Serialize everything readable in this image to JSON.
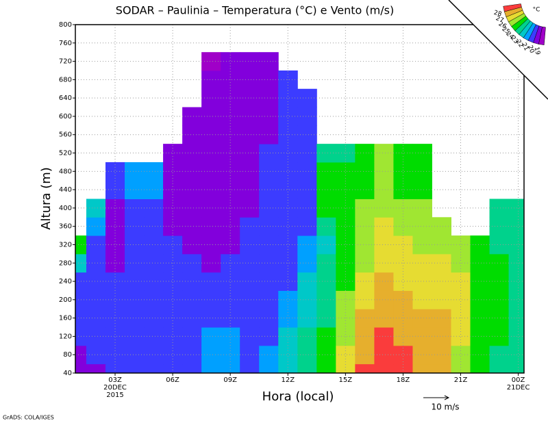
{
  "chart_data": {
    "type": "heatmap",
    "title": "SODAR – Paulinia – Temperatura (°C) e Vento (m/s)",
    "x_label": "Hora (local)",
    "y_label": "Altura (m)",
    "x": [
      1,
      2,
      3,
      4,
      5,
      6,
      7,
      8,
      9,
      10,
      11,
      12,
      13,
      14,
      15,
      16,
      17,
      18,
      19,
      20,
      21,
      22,
      23,
      24
    ],
    "y": [
      40,
      80,
      120,
      160,
      200,
      240,
      280,
      320,
      360,
      400,
      440,
      480,
      520,
      560,
      600,
      640,
      680,
      720,
      760,
      800
    ],
    "z": [
      [
        19.5,
        19.5,
        20.5,
        20.5,
        20.5,
        20.5,
        22.5,
        24.5,
        null,
        null,
        null,
        null,
        null,
        null,
        null,
        null,
        null,
        null,
        null,
        null
      ],
      [
        19.5,
        20.5,
        20.5,
        20.5,
        20.5,
        20.5,
        20.5,
        20.5,
        21.5,
        22.5,
        null,
        null,
        null,
        null,
        null,
        null,
        null,
        null,
        null,
        null
      ],
      [
        20.5,
        20.5,
        20.5,
        20.5,
        20.5,
        20.5,
        19.5,
        19.5,
        19.5,
        19.5,
        20.5,
        20.5,
        null,
        null,
        null,
        null,
        null,
        null,
        null,
        null
      ],
      [
        20.5,
        20.5,
        20.5,
        20.5,
        20.5,
        20.5,
        20.5,
        20.5,
        20.5,
        20.5,
        21.5,
        21.5,
        null,
        null,
        null,
        null,
        null,
        null,
        null,
        null
      ],
      [
        20.5,
        20.5,
        20.5,
        20.5,
        20.5,
        20.5,
        20.5,
        20.5,
        20.5,
        20.5,
        21.5,
        21.5,
        null,
        null,
        null,
        null,
        null,
        null,
        null,
        null
      ],
      [
        20.5,
        20.5,
        20.5,
        20.5,
        20.5,
        20.5,
        20.5,
        20.5,
        19.5,
        19.5,
        19.5,
        19.5,
        19.5,
        null,
        null,
        null,
        null,
        null,
        null,
        null
      ],
      [
        20.5,
        20.5,
        20.5,
        20.5,
        20.5,
        20.5,
        20.5,
        19.5,
        19.5,
        19.5,
        19.5,
        19.5,
        19.5,
        19.5,
        19.5,
        null,
        null,
        null,
        null,
        null
      ],
      [
        21.5,
        21.5,
        21.5,
        20.5,
        20.5,
        20.5,
        19.5,
        19.5,
        19.5,
        19.5,
        19.5,
        19.5,
        19.5,
        19.5,
        19.5,
        19.5,
        19.5,
        18.5,
        null,
        null
      ],
      [
        21.5,
        21.5,
        21.5,
        20.5,
        20.5,
        20.5,
        20.5,
        19.5,
        19.5,
        19.5,
        19.5,
        19.5,
        19.5,
        19.5,
        19.5,
        19.5,
        19.5,
        19.5,
        null,
        null
      ],
      [
        20.5,
        20.5,
        20.5,
        20.5,
        20.5,
        20.5,
        20.5,
        20.5,
        20.5,
        19.5,
        19.5,
        19.5,
        19.5,
        19.5,
        19.5,
        19.5,
        19.5,
        19.5,
        null,
        null
      ],
      [
        21.5,
        21.5,
        20.5,
        20.5,
        20.5,
        20.5,
        20.5,
        20.5,
        20.5,
        20.5,
        20.5,
        20.5,
        20.5,
        19.5,
        19.5,
        19.5,
        19.5,
        19.5,
        null,
        null
      ],
      [
        22.5,
        22.5,
        22.5,
        21.5,
        21.5,
        20.5,
        20.5,
        20.5,
        20.5,
        20.5,
        20.5,
        20.5,
        20.5,
        20.5,
        20.5,
        20.5,
        20.5,
        null,
        null,
        null
      ],
      [
        23.5,
        23.5,
        23.5,
        22.5,
        22.5,
        22.5,
        21.5,
        21.5,
        20.5,
        20.5,
        20.5,
        20.5,
        20.5,
        20.5,
        20.5,
        20.5,
        null,
        null,
        null,
        null
      ],
      [
        24.5,
        24.5,
        24.5,
        23.5,
        23.5,
        23.5,
        23.5,
        22.5,
        23.5,
        24.5,
        24.5,
        24.5,
        23.5,
        null,
        null,
        null,
        null,
        null,
        null,
        null
      ],
      [
        26.5,
        26.5,
        25.5,
        25.5,
        25.5,
        24.5,
        24.5,
        24.5,
        24.5,
        24.5,
        24.5,
        24.5,
        23.5,
        null,
        null,
        null,
        null,
        null,
        null,
        null
      ],
      [
        28.5,
        27.5,
        27.5,
        27.5,
        26.5,
        26.5,
        25.5,
        25.5,
        25.5,
        25.5,
        24.5,
        24.5,
        24.5,
        null,
        null,
        null,
        null,
        null,
        null,
        null
      ],
      [
        28.5,
        28.5,
        28.5,
        27.5,
        27.5,
        27.5,
        26.5,
        26.5,
        26.5,
        25.5,
        25.5,
        25.5,
        25.5,
        null,
        null,
        null,
        null,
        null,
        null,
        null
      ],
      [
        28.5,
        28.5,
        27.5,
        27.5,
        27.5,
        26.5,
        26.5,
        26.5,
        25.5,
        25.5,
        24.5,
        24.5,
        24.5,
        null,
        null,
        null,
        null,
        null,
        null,
        null
      ],
      [
        27.5,
        27.5,
        27.5,
        27.5,
        26.5,
        26.5,
        26.5,
        25.5,
        25.5,
        25.5,
        24.5,
        24.5,
        24.5,
        null,
        null,
        null,
        null,
        null,
        null,
        null
      ],
      [
        27.5,
        27.5,
        27.5,
        27.5,
        26.5,
        26.5,
        26.5,
        25.5,
        25.5,
        null,
        null,
        null,
        null,
        null,
        null,
        null,
        null,
        null,
        null,
        null
      ],
      [
        25.5,
        25.5,
        26.5,
        26.5,
        26.5,
        26.5,
        25.5,
        25.5,
        null,
        null,
        null,
        null,
        null,
        null,
        null,
        null,
        null,
        null,
        null,
        null
      ],
      [
        24.5,
        24.5,
        24.5,
        24.5,
        24.5,
        24.5,
        24.5,
        24.5,
        null,
        null,
        null,
        null,
        null,
        null,
        null,
        null,
        null,
        null,
        null,
        null
      ],
      [
        23.5,
        23.5,
        24.5,
        24.5,
        24.5,
        24.5,
        24.5,
        23.5,
        23.5,
        23.5,
        null,
        null,
        null,
        null,
        null,
        null,
        null,
        null,
        null,
        null
      ],
      [
        23.5,
        23.5,
        23.5,
        23.5,
        23.5,
        23.5,
        23.5,
        23.5,
        23.5,
        23.5,
        null,
        null,
        null,
        null,
        null,
        null,
        null,
        null,
        null,
        null
      ]
    ],
    "levels": [
      19,
      20,
      21,
      22,
      23,
      24,
      25,
      26,
      27,
      28
    ],
    "colors": [
      "#a000c8",
      "#8200dc",
      "#3c3cff",
      "#00a0ff",
      "#00c8c8",
      "#00d28c",
      "#00dc00",
      "#a0e632",
      "#e6dc32",
      "#e6af2d",
      "#fa3c3c"
    ],
    "colorbar_unit": "°C",
    "xlim": [
      0.93,
      24.3
    ],
    "ylim": [
      40,
      800
    ],
    "yticks": [
      40,
      80,
      120,
      160,
      200,
      240,
      280,
      320,
      360,
      400,
      440,
      480,
      520,
      560,
      600,
      640,
      680,
      720,
      760,
      800
    ],
    "xticks": [
      {
        "value": 3,
        "label": "03Z"
      },
      {
        "value": 6,
        "label": "06Z"
      },
      {
        "value": 9,
        "label": "09Z"
      },
      {
        "value": 12,
        "label": "12Z"
      },
      {
        "value": 15,
        "label": "15Z"
      },
      {
        "value": 18,
        "label": "18Z"
      },
      {
        "value": 21,
        "label": "21Z"
      },
      {
        "value": 24,
        "label": "00Z"
      }
    ],
    "date_labels": [
      {
        "value": 3,
        "lines": [
          "20DEC",
          "2015"
        ]
      },
      {
        "value": 24,
        "lines": [
          "21DEC"
        ]
      }
    ],
    "vector_scale_label": "10 m/s",
    "credit": "GrADS: COLA/IGES",
    "grid": true
  }
}
